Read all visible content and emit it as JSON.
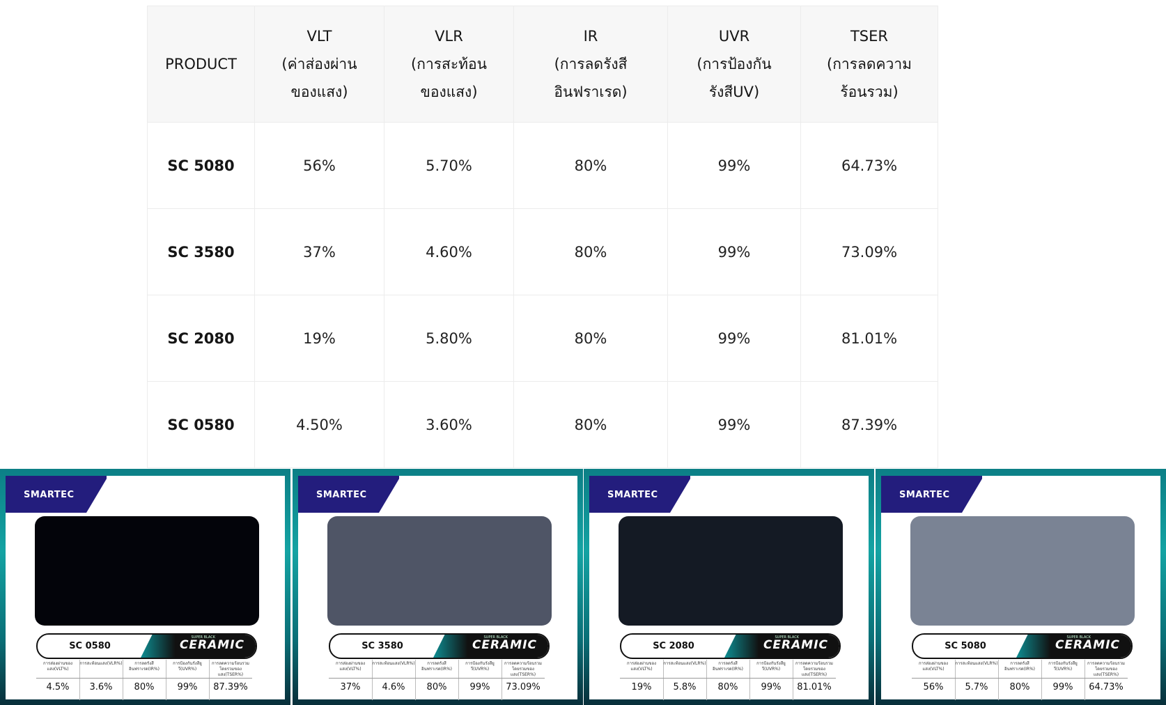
{
  "table": {
    "headers": [
      {
        "lines": [
          "PRODUCT"
        ]
      },
      {
        "lines": [
          "VLT",
          "(ค่าส่องผ่าน",
          "ของแสง)"
        ]
      },
      {
        "lines": [
          "VLR",
          "(การสะท้อน",
          "ของแสง)"
        ]
      },
      {
        "lines": [
          "IR",
          "(การลดรังสี",
          "อินฟราเรด)"
        ]
      },
      {
        "lines": [
          "UVR",
          "(การป้องกัน",
          "รังสีUV)"
        ]
      },
      {
        "lines": [
          "TSER",
          "(การลดความ",
          "ร้อนรวม)"
        ]
      }
    ],
    "rows": [
      [
        "SC 5080",
        "56%",
        "5.70%",
        "80%",
        "99%",
        "64.73%"
      ],
      [
        "SC 3580",
        "37%",
        "4.60%",
        "80%",
        "99%",
        "73.09%"
      ],
      [
        "SC 2080",
        "19%",
        "5.80%",
        "80%",
        "99%",
        "81.01%"
      ],
      [
        "SC 0580",
        "4.50%",
        "3.60%",
        "80%",
        "99%",
        "87.39%"
      ]
    ]
  },
  "cards": [
    {
      "brand": "SMARTEC",
      "name": "SC 0580",
      "series": "CERAMIC",
      "series_sub": "SUPER BLACK",
      "swatch_color": "#03040a",
      "stat_labels": [
        "การส่องผ่านของแสง(VLT%)",
        "การสะท้อนแสง(VLR%)",
        "การลดรังสีอินฟราเรด(IR%)",
        "การป้องกันรังสียูวี(UVR%)",
        "การลดความร้อนรวมโดยรวมของแสง(TSER%)"
      ],
      "stat_values": [
        "4.5%",
        "3.6%",
        "80%",
        "99%",
        "87.39%"
      ]
    },
    {
      "brand": "SMARTEC",
      "name": "SC 3580",
      "series": "CERAMIC",
      "series_sub": "SUPER BLACK",
      "swatch_color": "#4f5566",
      "stat_labels": [
        "การส่องผ่านของแสง(VLT%)",
        "การสะท้อนแสง(VLR%)",
        "การลดรังสีอินฟราเรด(IR%)",
        "การป้องกันรังสียูวี(UVR%)",
        "การลดความร้อนรวมโดยรวมของแสง(TSER%)"
      ],
      "stat_values": [
        "37%",
        "4.6%",
        "80%",
        "99%",
        "73.09%"
      ]
    },
    {
      "brand": "SMARTEC",
      "name": "SC 2080",
      "series": "CERAMIC",
      "series_sub": "SUPER BLACK",
      "swatch_color": "#141a24",
      "stat_labels": [
        "การส่องผ่านของแสง(VLT%)",
        "การสะท้อนแสง(VLR%)",
        "การลดรังสีอินฟราเรด(IR%)",
        "การป้องกันรังสียูวี(UVR%)",
        "การลดความร้อนรวมโดยรวมของแสง(TSER%)"
      ],
      "stat_values": [
        "19%",
        "5.8%",
        "80%",
        "99%",
        "81.01%"
      ]
    },
    {
      "brand": "SMARTEC",
      "name": "SC 5080",
      "series": "CERAMIC",
      "series_sub": "SUPER BLACK",
      "swatch_color": "#7a8394",
      "stat_labels": [
        "การส่องผ่านของแสง(VLT%)",
        "การสะท้อนแสง(VLR%)",
        "การลดรังสีอินฟราเรด(IR%)",
        "การป้องกันรังสียูวี(UVR%)",
        "การลดความร้อนรวมโดยรวมของแสง(TSER%)"
      ],
      "stat_values": [
        "56%",
        "5.7%",
        "80%",
        "99%",
        "64.73%"
      ]
    }
  ]
}
